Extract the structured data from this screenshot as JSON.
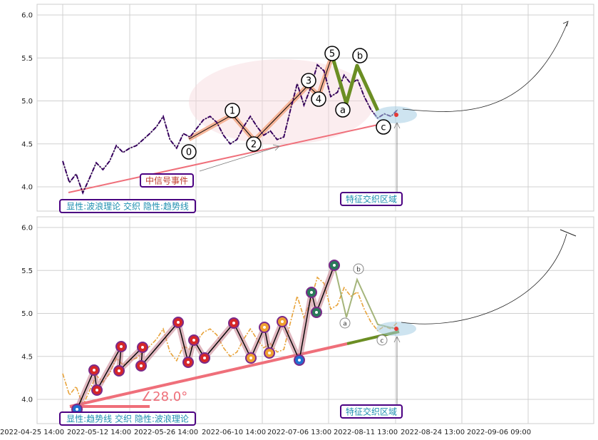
{
  "chart_data": [
    {
      "type": "line",
      "panel": "top",
      "ylim": [
        3.7,
        6.1
      ],
      "y_ticks": [
        "4.0",
        "4.5",
        "5.0",
        "5.5",
        "6.0"
      ],
      "series": [
        {
          "name": "",
          "style": "purple dash-dot price line",
          "x": [
            0,
            1,
            2,
            3,
            4,
            5,
            6,
            7,
            8,
            9,
            10,
            11,
            12,
            13,
            14,
            15,
            16,
            17,
            18,
            19,
            20,
            21,
            22,
            23,
            24,
            25,
            26,
            27,
            28,
            29,
            30,
            31,
            32,
            33,
            34,
            35,
            36,
            37,
            38,
            39,
            40,
            41,
            42,
            43,
            44,
            45,
            46,
            47,
            48,
            49,
            50
          ],
          "values": [
            4.3,
            4.05,
            4.15,
            3.93,
            4.1,
            4.28,
            4.2,
            4.3,
            4.48,
            4.4,
            4.45,
            4.48,
            4.55,
            4.62,
            4.7,
            4.82,
            4.55,
            4.45,
            4.62,
            4.58,
            4.68,
            4.78,
            4.82,
            4.75,
            4.6,
            4.5,
            4.55,
            4.7,
            4.82,
            4.7,
            4.6,
            4.65,
            4.55,
            4.58,
            4.9,
            5.2,
            4.95,
            5.15,
            5.42,
            5.35,
            5.05,
            5.1,
            5.3,
            5.2,
            5.25,
            5.05,
            4.9,
            4.8,
            4.85,
            4.82,
            4.9
          ]
        }
      ],
      "wave_labels": [
        "0",
        "1",
        "2",
        "3",
        "4",
        "5",
        "a",
        "b",
        "c"
      ],
      "annotations": [
        "中信号事件",
        "显性:波浪理论 交织 隐性:趋势线",
        "特征交织区域"
      ]
    },
    {
      "type": "line",
      "panel": "bottom",
      "ylim": [
        3.7,
        6.1
      ],
      "y_ticks": [
        "4.0",
        "4.5",
        "5.0",
        "5.5",
        "6.0"
      ],
      "angle_label": "∠28.0°",
      "annotations": [
        "显性:趋势线 交织 隐性:波浪理论",
        "特征交织区域"
      ]
    }
  ],
  "x_ticks": [
    "2022-04-25 14:00",
    "2022-05-12 14:00",
    "2022-05-26 14:00",
    "2022-06-10 14:00",
    "2022-07-06 13:00",
    "2022-08-11 13:00",
    "2022-08-24 13:00",
    "2022-09-06 09:00"
  ],
  "colors": {
    "price_top": "#4b0082",
    "price_bottom": "#e8a33a",
    "trend": "#ef6f7a",
    "wave_fill": "#f4a582",
    "abc_wave": "#6b8e23",
    "zone": "#a6cee3",
    "note_text": "#1f8fb0",
    "note_border": "#4b0082",
    "event_text": "#c0392b"
  }
}
